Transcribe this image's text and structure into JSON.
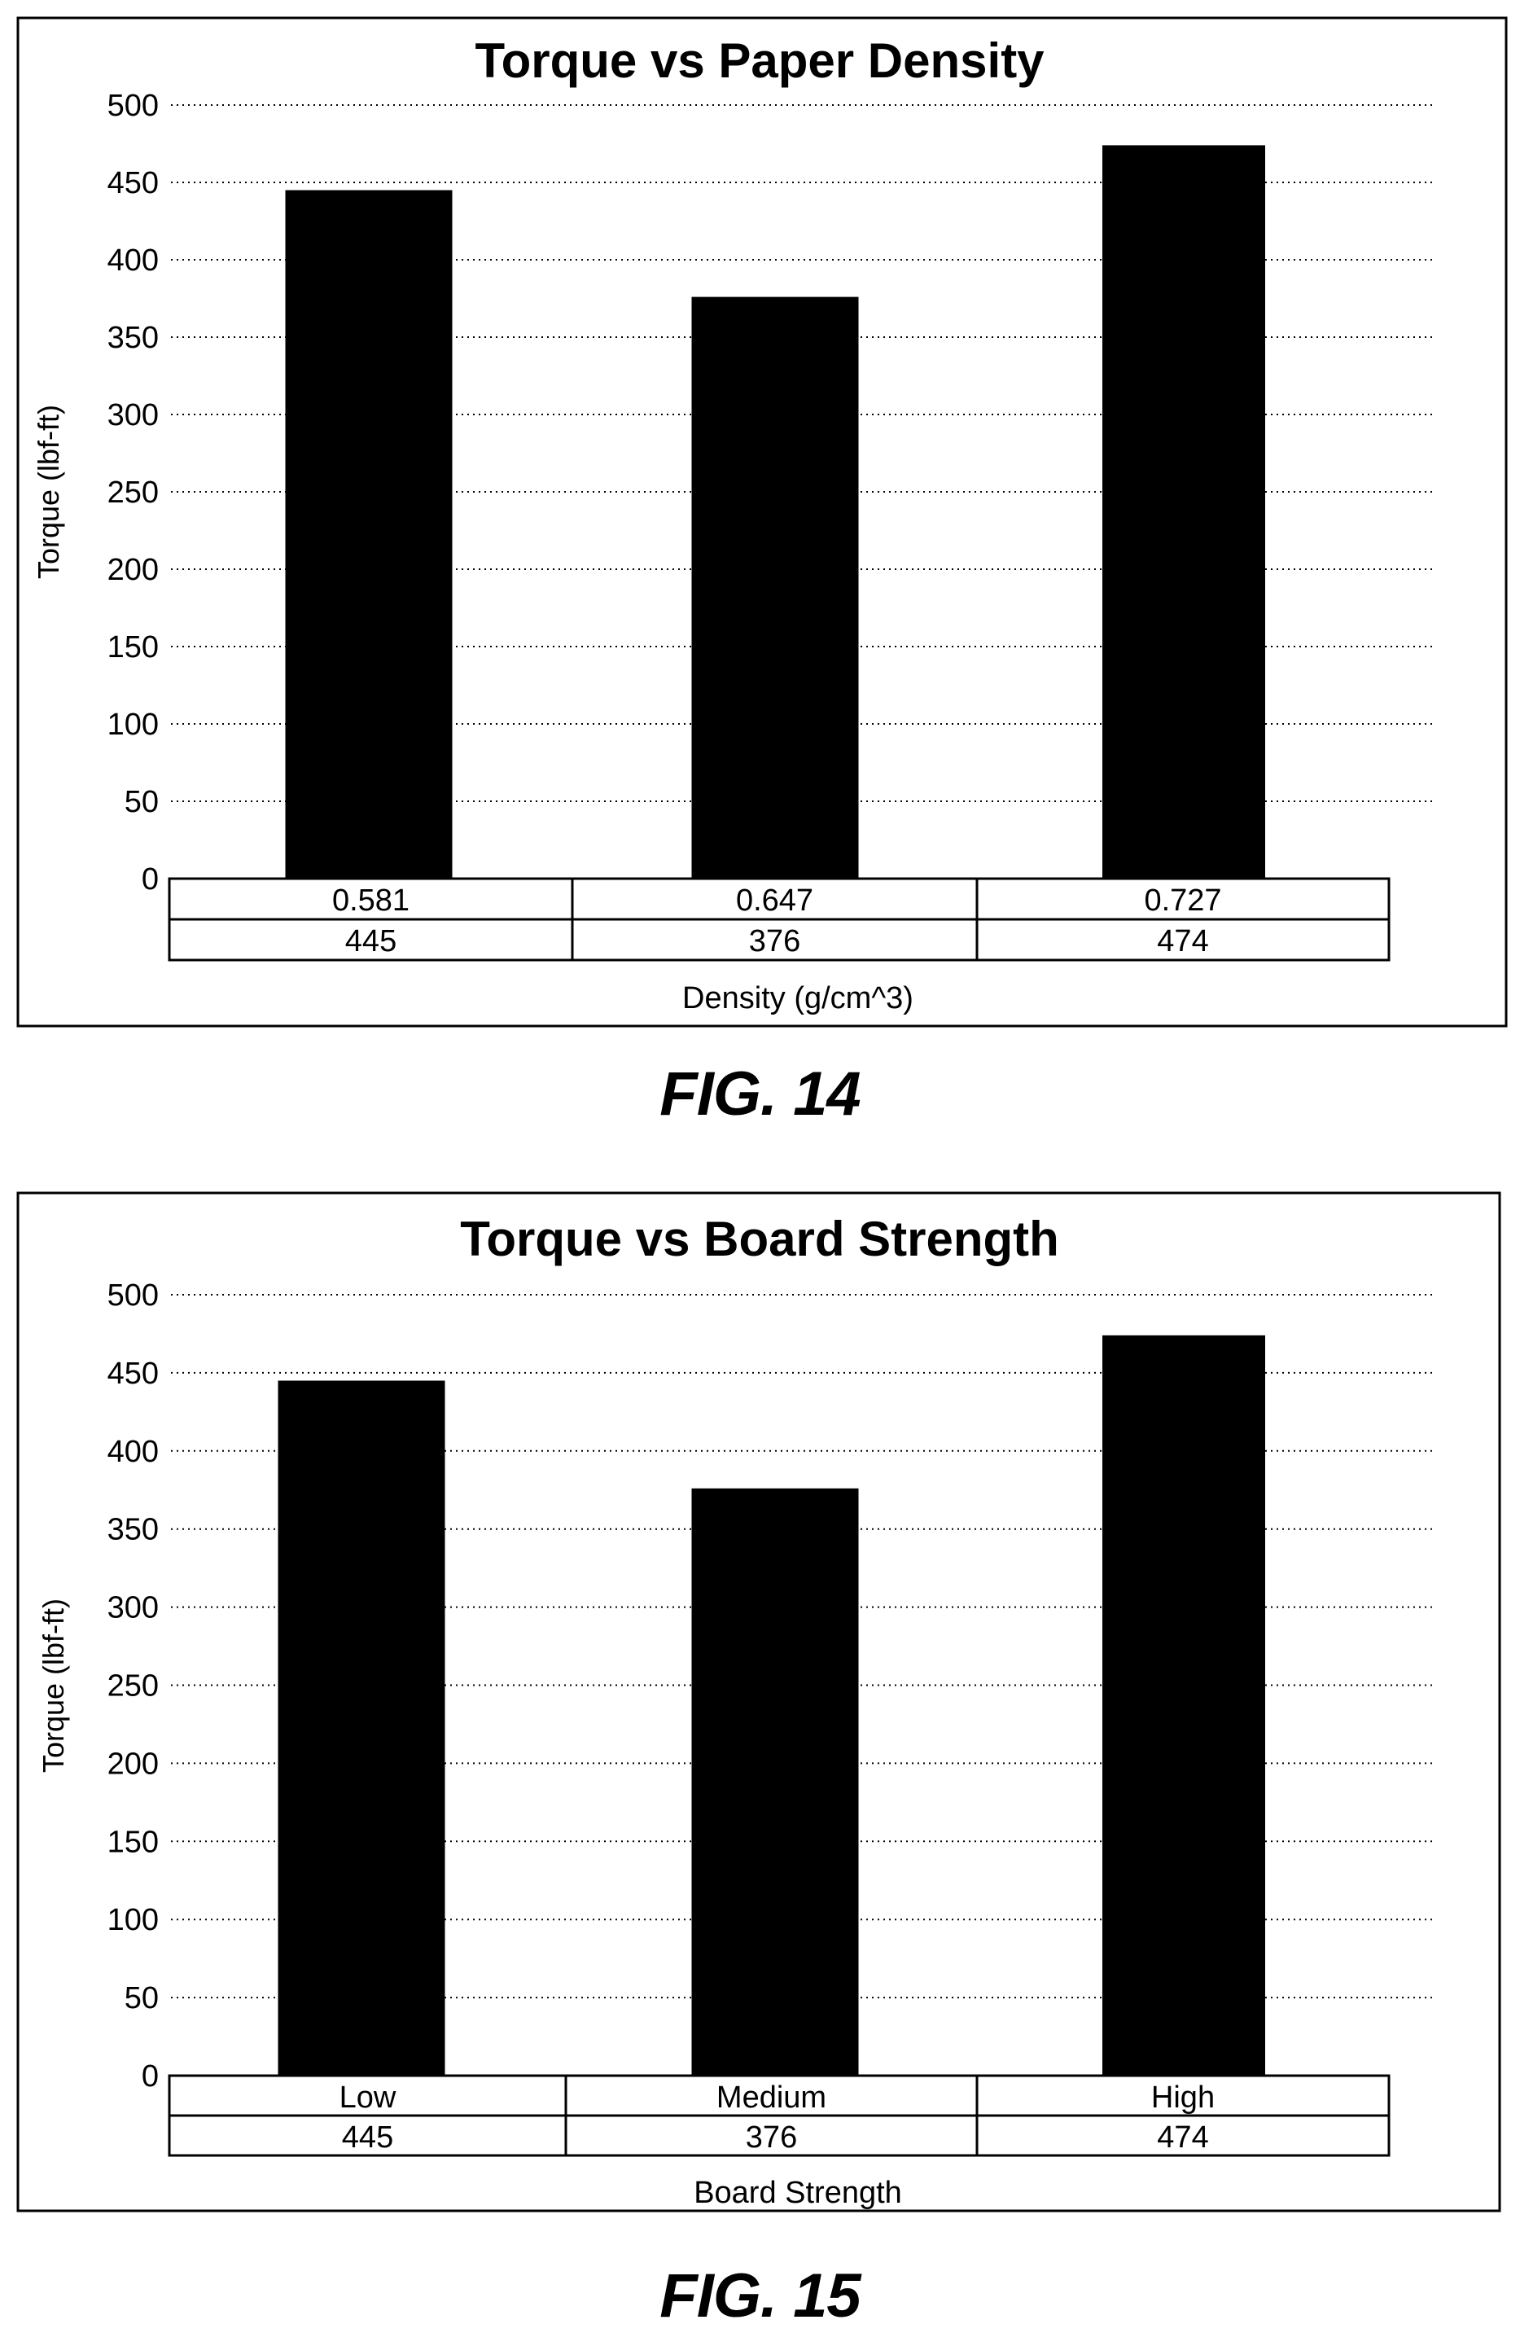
{
  "figures": [
    {
      "caption": "FIG. 14"
    },
    {
      "caption": "FIG. 15"
    }
  ],
  "chart_data": [
    {
      "type": "bar",
      "title": "Torque vs Paper Density",
      "xlabel": "Density (g/cm^3)",
      "ylabel": "Torque (lbf-ft)",
      "ylim": [
        0,
        500
      ],
      "yticks": [
        0,
        50,
        100,
        150,
        200,
        250,
        300,
        350,
        400,
        450,
        500
      ],
      "grid": true,
      "categories": [
        "0.581",
        "0.647",
        "0.727"
      ],
      "values": [
        445,
        376,
        474
      ],
      "table_values": [
        "445",
        "376",
        "474"
      ],
      "bar_color": "#000000"
    },
    {
      "type": "bar",
      "title": "Torque vs Board Strength",
      "xlabel": "Board Strength",
      "ylabel": "Torque (lbf-ft)",
      "ylim": [
        0,
        500
      ],
      "yticks": [
        0,
        50,
        100,
        150,
        200,
        250,
        300,
        350,
        400,
        450,
        500
      ],
      "grid": true,
      "categories": [
        "Low",
        "Medium",
        "High"
      ],
      "values": [
        445,
        376,
        474
      ],
      "table_values": [
        "445",
        "376",
        "474"
      ],
      "bar_color": "#000000"
    }
  ]
}
